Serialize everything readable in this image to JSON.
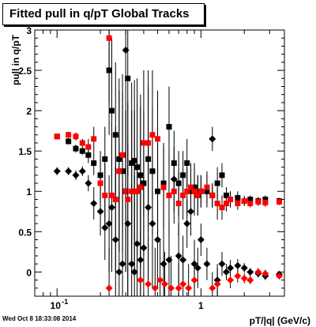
{
  "chart_data": {
    "type": "scatter",
    "title": "Fitted pull in q/pT  Global Tracks",
    "xlabel": "pT/|q| (GeV/c)",
    "ylabel": "pull in q/pT",
    "x_scale": "log",
    "xlim": [
      0.07,
      3.8
    ],
    "ylim": [
      -0.3,
      3.0
    ],
    "x_tick_labels": [
      "10",
      "1"
    ],
    "x_tick_label_exponent": "-1",
    "y_ticks": [
      0,
      0.5,
      1,
      1.5,
      2,
      2.5,
      3
    ],
    "grid": false,
    "legend": "none",
    "series": [
      {
        "marker": "filled-square",
        "color": "#000000",
        "points": [
          [
            0.1,
            1.68,
            0.03
          ],
          [
            0.12,
            1.62,
            0.04
          ],
          [
            0.135,
            1.53,
            0.05
          ],
          [
            0.15,
            1.5,
            0.05
          ],
          [
            0.165,
            1.45,
            0.1
          ],
          [
            0.18,
            1.35,
            0.15
          ],
          [
            0.2,
            1.2,
            0.3
          ],
          [
            0.215,
            1.4,
            0.4
          ],
          [
            0.23,
            2.5,
            0.8
          ],
          [
            0.24,
            2.0,
            0.9
          ],
          [
            0.255,
            1.7,
            0.9
          ],
          [
            0.27,
            1.4,
            1.0
          ],
          [
            0.285,
            1.25,
            1.0
          ],
          [
            0.3,
            1.0,
            1.0
          ],
          [
            0.31,
            2.4,
            1.2
          ],
          [
            0.33,
            1.35,
            1.0
          ],
          [
            0.345,
            1.38,
            1.0
          ],
          [
            0.36,
            1.3,
            1.1
          ],
          [
            0.38,
            1.2,
            1.0
          ],
          [
            0.4,
            1.1,
            0.9
          ],
          [
            0.43,
            1.4,
            0.9
          ],
          [
            0.46,
            1.25,
            0.8
          ],
          [
            0.5,
            1.0,
            0.6
          ],
          [
            0.55,
            1.1,
            0.5
          ],
          [
            0.6,
            1.8,
            0.5
          ],
          [
            0.65,
            1.35,
            0.4
          ],
          [
            0.7,
            1.1,
            0.4
          ],
          [
            0.75,
            1.2,
            0.3
          ],
          [
            0.8,
            1.35,
            0.3
          ],
          [
            0.85,
            1.0,
            0.3
          ],
          [
            0.9,
            1.05,
            0.3
          ],
          [
            0.95,
            0.95,
            0.25
          ],
          [
            1.0,
            1.0,
            0.2
          ],
          [
            1.1,
            1.0,
            0.2
          ],
          [
            1.2,
            0.95,
            0.15
          ],
          [
            1.3,
            1.1,
            0.2
          ],
          [
            1.4,
            1.2,
            0.15
          ],
          [
            1.5,
            0.95,
            0.1
          ],
          [
            1.6,
            0.9,
            0.1
          ],
          [
            1.8,
            0.92,
            0.08
          ],
          [
            2.0,
            0.88,
            0.06
          ],
          [
            2.2,
            0.9,
            0.05
          ],
          [
            2.5,
            0.88,
            0.05
          ],
          [
            2.8,
            0.9,
            0.05
          ],
          [
            3.5,
            0.88,
            0.04
          ]
        ]
      },
      {
        "marker": "filled-diamond",
        "color": "#000000",
        "points": [
          [
            0.1,
            1.25,
            0.05
          ],
          [
            0.12,
            1.25,
            0.05
          ],
          [
            0.135,
            1.2,
            0.06
          ],
          [
            0.15,
            1.25,
            0.06
          ],
          [
            0.165,
            1.1,
            0.1
          ],
          [
            0.18,
            0.85,
            0.2
          ],
          [
            0.2,
            0.75,
            0.3
          ],
          [
            0.215,
            0.55,
            0.4
          ],
          [
            0.23,
            0.6,
            0.6
          ],
          [
            0.24,
            0.8,
            0.8
          ],
          [
            0.255,
            0.4,
            0.9
          ],
          [
            0.27,
            0.0,
            1.0
          ],
          [
            0.285,
            0.1,
            1.0
          ],
          [
            0.3,
            2.75,
            1.5
          ],
          [
            0.31,
            0.6,
            1.0
          ],
          [
            0.33,
            0.1,
            1.0
          ],
          [
            0.345,
            0.0,
            1.2
          ],
          [
            0.36,
            0.35,
            1.0
          ],
          [
            0.38,
            0.15,
            1.0
          ],
          [
            0.4,
            0.3,
            0.9
          ],
          [
            0.43,
            0.8,
            0.9
          ],
          [
            0.46,
            0.6,
            0.8
          ],
          [
            0.5,
            0.4,
            0.6
          ],
          [
            0.55,
            0.1,
            0.5
          ],
          [
            0.6,
            0.15,
            0.5
          ],
          [
            0.65,
            1.15,
            0.4
          ],
          [
            0.7,
            0.2,
            0.4
          ],
          [
            0.75,
            0.15,
            0.3
          ],
          [
            0.8,
            0.6,
            0.3
          ],
          [
            0.85,
            0.75,
            0.3
          ],
          [
            0.9,
            0.1,
            0.3
          ],
          [
            0.95,
            0.05,
            0.25
          ],
          [
            1.0,
            0.4,
            0.2
          ],
          [
            1.1,
            0.1,
            0.2
          ],
          [
            1.2,
            1.65,
            0.15
          ],
          [
            1.3,
            -0.1,
            0.2
          ],
          [
            1.4,
            0.1,
            0.15
          ],
          [
            1.5,
            0.0,
            0.1
          ],
          [
            1.6,
            0.05,
            0.1
          ],
          [
            1.8,
            0.08,
            0.08
          ],
          [
            2.0,
            0.05,
            0.06
          ],
          [
            2.2,
            0.0,
            0.05
          ],
          [
            2.5,
            -0.02,
            0.05
          ],
          [
            2.8,
            -0.05,
            0.05
          ],
          [
            3.5,
            -0.03,
            0.04
          ]
        ]
      },
      {
        "marker": "filled-square",
        "color": "#ff0000",
        "points": [
          [
            0.1,
            1.68,
            0.03
          ],
          [
            0.12,
            1.7,
            0.04
          ],
          [
            0.135,
            1.68,
            0.05
          ],
          [
            0.15,
            1.6,
            0.05
          ],
          [
            0.165,
            1.55,
            0.1
          ],
          [
            0.18,
            1.65,
            0.15
          ],
          [
            0.2,
            1.1,
            0.3
          ],
          [
            0.215,
            0.95,
            0.4
          ],
          [
            0.23,
            2.9,
            0.8
          ],
          [
            0.24,
            0.95,
            0.9
          ],
          [
            0.255,
            0.9,
            0.9
          ],
          [
            0.27,
            1.25,
            1.0
          ],
          [
            0.285,
            1.45,
            1.0
          ],
          [
            0.3,
            1.0,
            1.0
          ],
          [
            0.31,
            0.9,
            1.2
          ],
          [
            0.33,
            1.0,
            1.0
          ],
          [
            0.345,
            1.0,
            1.0
          ],
          [
            0.36,
            1.0,
            1.1
          ],
          [
            0.38,
            1.05,
            1.0
          ],
          [
            0.4,
            1.6,
            0.9
          ],
          [
            0.43,
            1.6,
            0.9
          ],
          [
            0.46,
            1.7,
            0.8
          ],
          [
            0.5,
            1.65,
            0.6
          ],
          [
            0.55,
            1.05,
            0.5
          ],
          [
            0.6,
            0.95,
            0.5
          ],
          [
            0.65,
            1.0,
            0.4
          ],
          [
            0.7,
            0.85,
            0.4
          ],
          [
            0.75,
            0.95,
            0.3
          ],
          [
            0.8,
            1.0,
            0.3
          ],
          [
            0.85,
            1.05,
            0.3
          ],
          [
            0.9,
            1.0,
            0.3
          ],
          [
            0.95,
            0.95,
            0.25
          ],
          [
            1.0,
            1.0,
            0.2
          ],
          [
            1.1,
            1.05,
            0.2
          ],
          [
            1.2,
            0.95,
            0.15
          ],
          [
            1.3,
            0.85,
            0.2
          ],
          [
            1.4,
            0.8,
            0.15
          ],
          [
            1.5,
            0.85,
            0.1
          ],
          [
            1.6,
            0.9,
            0.1
          ],
          [
            1.8,
            0.85,
            0.08
          ],
          [
            2.0,
            0.88,
            0.06
          ],
          [
            2.2,
            0.85,
            0.05
          ],
          [
            2.5,
            0.87,
            0.05
          ],
          [
            2.8,
            0.86,
            0.05
          ],
          [
            3.5,
            0.87,
            0.04
          ]
        ]
      },
      {
        "marker": "filled-diamond",
        "color": "#ff0000",
        "points": [
          [
            0.23,
            -0.2,
            0.5
          ],
          [
            0.38,
            -0.1,
            0.6
          ],
          [
            0.43,
            -0.15,
            0.6
          ],
          [
            0.48,
            -0.2,
            0.5
          ],
          [
            0.52,
            -0.1,
            0.5
          ],
          [
            0.56,
            -0.15,
            0.4
          ],
          [
            0.62,
            -0.2,
            0.4
          ],
          [
            0.7,
            -0.2,
            0.3
          ],
          [
            0.75,
            -0.15,
            0.3
          ],
          [
            0.82,
            -0.2,
            0.3
          ],
          [
            0.9,
            -0.1,
            0.25
          ],
          [
            1.2,
            -0.2,
            0.2
          ],
          [
            1.3,
            -0.15,
            0.2
          ],
          [
            1.6,
            -0.1,
            0.1
          ],
          [
            1.8,
            -0.05,
            0.08
          ],
          [
            2.0,
            -0.08,
            0.06
          ],
          [
            2.2,
            -0.1,
            0.05
          ],
          [
            2.5,
            0.0,
            0.05
          ],
          [
            2.8,
            -0.02,
            0.05
          ],
          [
            3.5,
            -0.05,
            0.04
          ]
        ]
      }
    ]
  },
  "footer": {
    "timestamp": "Wed Oct  8 18:33:08 2014"
  }
}
